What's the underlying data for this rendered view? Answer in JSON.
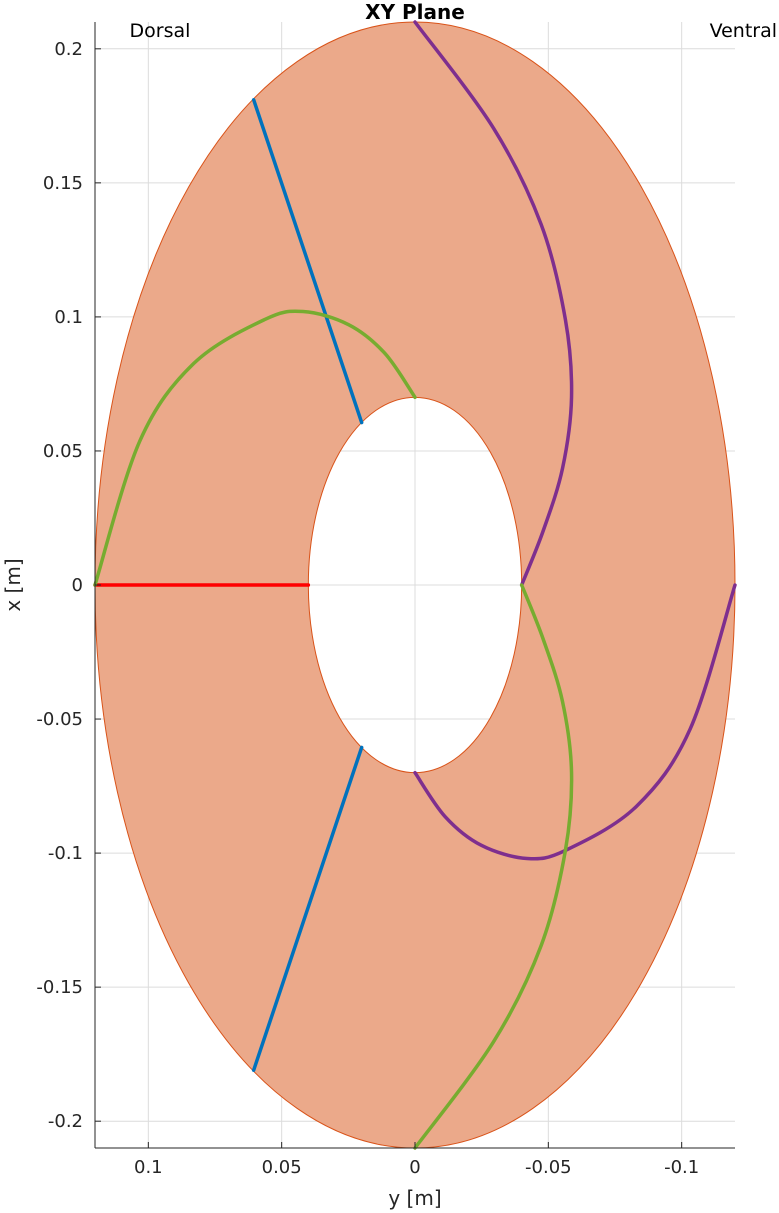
{
  "chart_data": {
    "type": "line",
    "title": "XY Plane",
    "xlabel": "y [m]",
    "ylabel": "x [m]",
    "x_axis_reversed": true,
    "xlim": [
      0.12,
      -0.12
    ],
    "ylim": [
      -0.21,
      0.21
    ],
    "xticks": [
      0.1,
      0.05,
      0,
      -0.05,
      -0.1
    ],
    "xtick_labels": [
      "0.1",
      "0.05",
      "0",
      "-0.05",
      "-0.1"
    ],
    "yticks": [
      0.2,
      0.15,
      0.1,
      0.05,
      0,
      -0.05,
      -0.1,
      -0.15,
      -0.2
    ],
    "ytick_labels": [
      "0.2",
      "0.15",
      "0.1",
      "0.05",
      "0",
      "-0.05",
      "-0.1",
      "-0.15",
      "-0.2"
    ],
    "grid": true,
    "annotations": [
      {
        "text": "Dorsal",
        "position": "top-left"
      },
      {
        "text": "Ventral",
        "position": "top-right"
      }
    ],
    "region": {
      "shape": "elliptical annulus",
      "outer_semi_axis_y": 0.12,
      "outer_semi_axis_x": 0.21,
      "inner_semi_axis_y": 0.04,
      "inner_semi_axis_x": 0.07,
      "fill_color": "#eba98a",
      "edge_color": "#d95319"
    },
    "series": [
      {
        "color": "#ff0000",
        "points": [
          [
            0.12,
            0
          ],
          [
            0.04,
            0
          ]
        ]
      },
      {
        "color": "#0072bd",
        "points": [
          [
            0.0605,
            0.181
          ],
          [
            0.02,
            0.0606
          ]
        ]
      },
      {
        "color": "#0072bd",
        "points": [
          [
            0.0605,
            -0.181
          ],
          [
            0.02,
            -0.0606
          ]
        ]
      },
      {
        "color": "#7e2f8e",
        "points": [
          [
            0,
            0.21
          ],
          [
            -0.0295,
            0.1703
          ],
          [
            -0.0473,
            0.1345
          ],
          [
            -0.0564,
            0.099
          ],
          [
            -0.0587,
            0.07
          ],
          [
            -0.0553,
            0.0434
          ],
          [
            -0.048,
            0.02
          ],
          [
            -0.04,
            0
          ]
        ]
      },
      {
        "color": "#7e2f8e",
        "points": [
          [
            -0.12,
            0
          ],
          [
            -0.1032,
            -0.0537
          ],
          [
            -0.083,
            -0.0826
          ],
          [
            -0.0564,
            -0.099
          ],
          [
            -0.042,
            -0.102
          ],
          [
            -0.0249,
            -0.0971
          ],
          [
            -0.0113,
            -0.0864
          ],
          [
            0,
            -0.07
          ]
        ]
      },
      {
        "color": "#77ac30",
        "points": [
          [
            0,
            0.07
          ],
          [
            0.0113,
            0.0864
          ],
          [
            0.0249,
            0.0971
          ],
          [
            0.042,
            0.102
          ],
          [
            0.0564,
            0.099
          ],
          [
            0.083,
            0.0826
          ],
          [
            0.1032,
            0.0537
          ],
          [
            0.12,
            0
          ]
        ]
      },
      {
        "color": "#77ac30",
        "points": [
          [
            -0.04,
            0
          ],
          [
            -0.048,
            -0.02
          ],
          [
            -0.0553,
            -0.0434
          ],
          [
            -0.0587,
            -0.07
          ],
          [
            -0.0564,
            -0.099
          ],
          [
            -0.0473,
            -0.1345
          ],
          [
            -0.0295,
            -0.1703
          ],
          [
            0,
            -0.21
          ]
        ]
      }
    ]
  }
}
